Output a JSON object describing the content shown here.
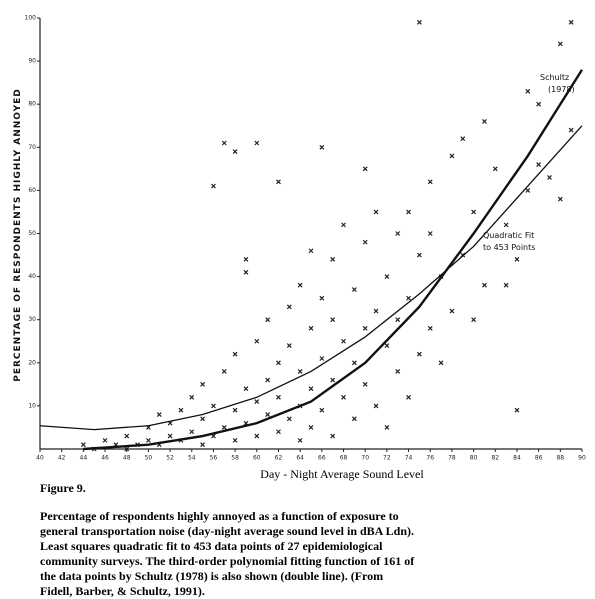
{
  "chart_data": {
    "type": "scatter",
    "xlabel": "Day - Night Average Sound Level",
    "ylabel": "PERCENTAGE OF RESPONDENTS HIGHLY ANNOYED",
    "xlim": [
      40,
      90
    ],
    "ylim": [
      0,
      100
    ],
    "xticks": [
      40,
      42,
      44,
      46,
      48,
      50,
      52,
      54,
      56,
      58,
      60,
      62,
      64,
      66,
      68,
      70,
      72,
      74,
      76,
      78,
      80,
      82,
      84,
      86,
      88,
      90
    ],
    "yticks": [
      10,
      20,
      30,
      40,
      50,
      60,
      70,
      80,
      90,
      100
    ],
    "color": "#222222",
    "x": [
      44,
      45,
      46,
      47,
      48,
      48,
      49,
      50,
      50,
      51,
      51,
      52,
      52,
      53,
      53,
      54,
      54,
      55,
      55,
      55,
      56,
      56,
      56,
      57,
      57,
      57,
      58,
      58,
      58,
      58,
      59,
      59,
      59,
      59,
      60,
      60,
      60,
      60,
      61,
      61,
      61,
      62,
      62,
      62,
      62,
      63,
      63,
      63,
      64,
      64,
      64,
      64,
      65,
      65,
      65,
      65,
      66,
      66,
      66,
      66,
      67,
      67,
      67,
      67,
      68,
      68,
      68,
      69,
      69,
      69,
      70,
      70,
      70,
      70,
      71,
      71,
      71,
      72,
      72,
      72,
      73,
      73,
      73,
      74,
      74,
      74,
      75,
      75,
      75,
      76,
      76,
      76,
      77,
      77,
      78,
      78,
      79,
      79,
      80,
      80,
      81,
      81,
      82,
      83,
      83,
      84,
      84,
      85,
      85,
      86,
      86,
      87,
      88,
      88,
      89,
      89
    ],
    "values": [
      1,
      0,
      2,
      1,
      0,
      3,
      1,
      2,
      5,
      1,
      8,
      3,
      6,
      2,
      9,
      4,
      12,
      1,
      7,
      15,
      3,
      10,
      61,
      5,
      18,
      71,
      2,
      9,
      22,
      69,
      6,
      14,
      41,
      44,
      3,
      11,
      25,
      71,
      8,
      16,
      30,
      4,
      12,
      20,
      62,
      7,
      24,
      33,
      2,
      10,
      18,
      38,
      5,
      14,
      28,
      46,
      9,
      21,
      35,
      70,
      3,
      16,
      30,
      44,
      12,
      25,
      52,
      7,
      20,
      37,
      15,
      28,
      48,
      65,
      10,
      32,
      55,
      5,
      24,
      40,
      18,
      30,
      50,
      12,
      35,
      55,
      22,
      45,
      99,
      28,
      50,
      62,
      20,
      40,
      32,
      68,
      45,
      72,
      55,
      30,
      38,
      76,
      65,
      52,
      38,
      9,
      44,
      60,
      83,
      80,
      66,
      63,
      58,
      94,
      74,
      99
    ],
    "curves": [
      {
        "x": [
          40,
          45,
          50,
          55,
          60,
          65,
          70,
          75,
          80,
          85,
          90
        ],
        "values": [
          5.4,
          4.5,
          5.4,
          8,
          12,
          18,
          26,
          36,
          47,
          61,
          75
        ]
      },
      {
        "x": [
          44,
          50,
          55,
          60,
          65,
          70,
          75,
          80,
          85,
          90
        ],
        "values": [
          0,
          1,
          3,
          6,
          11,
          20,
          33,
          50,
          68,
          88
        ]
      }
    ],
    "annotations": [
      "Schultz",
      "(1978)",
      "Quadratic Fit",
      "to 453 Points"
    ],
    "figure_label": "Figure 9.",
    "caption": [
      "Percentage of respondents highly annoyed as a function of exposure to",
      "general transportation noise (day-night average sound level in dBA Ldn).",
      "Least squares quadratic fit to 453 data points of 27 epidemiological",
      "community surveys. The third-order polynomial fitting function of 161 of",
      "the data points by Schultz (1978) is also shown (double line). (From",
      "Fidell, Barber, & Schultz, 1991)."
    ]
  }
}
